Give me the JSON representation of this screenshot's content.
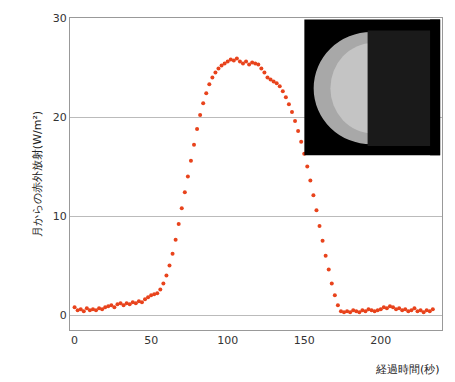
{
  "chart_data": {
    "type": "scatter",
    "x_label": "経過時間(秒)",
    "y_label": "月からの赤外放射(W/m²)",
    "color": "#e8431c",
    "marker": "circle",
    "grid": true,
    "xlim": [
      -3,
      240
    ],
    "ylim": [
      -1.5,
      30
    ],
    "xticks": [
      0,
      50,
      100,
      150,
      200
    ],
    "yticks": [
      0,
      10,
      20,
      30
    ],
    "x": [
      0,
      2,
      4,
      6,
      8,
      10,
      12,
      14,
      16,
      18,
      20,
      22,
      24,
      26,
      28,
      30,
      32,
      34,
      36,
      38,
      40,
      42,
      44,
      46,
      48,
      50,
      52,
      54,
      56,
      58,
      60,
      62,
      64,
      66,
      68,
      70,
      72,
      74,
      76,
      78,
      80,
      82,
      84,
      86,
      88,
      90,
      92,
      94,
      96,
      98,
      100,
      102,
      104,
      106,
      108,
      110,
      112,
      114,
      116,
      118,
      120,
      122,
      124,
      126,
      128,
      130,
      132,
      134,
      136,
      138,
      140,
      142,
      144,
      146,
      148,
      150,
      152,
      154,
      156,
      158,
      160,
      162,
      164,
      166,
      168,
      170,
      172,
      174,
      176,
      178,
      180,
      182,
      184,
      186,
      188,
      190,
      192,
      194,
      196,
      198,
      200,
      202,
      204,
      206,
      208,
      210,
      212,
      214,
      216,
      218,
      220,
      222,
      224,
      226,
      228,
      230,
      232,
      234
    ],
    "values": [
      0.8,
      0.5,
      0.6,
      0.4,
      0.7,
      0.5,
      0.6,
      0.5,
      0.7,
      0.6,
      0.8,
      0.9,
      1.0,
      0.8,
      1.1,
      1.2,
      1.0,
      1.2,
      1.1,
      1.3,
      1.2,
      1.4,
      1.3,
      1.6,
      1.8,
      2.0,
      2.1,
      2.2,
      2.6,
      3.2,
      4.0,
      5.0,
      6.2,
      7.6,
      9.2,
      10.8,
      12.4,
      14.0,
      15.6,
      17.2,
      18.8,
      20.2,
      21.4,
      22.4,
      23.3,
      24.0,
      24.5,
      24.9,
      25.2,
      25.4,
      25.6,
      25.8,
      25.7,
      25.9,
      25.6,
      25.4,
      25.6,
      25.3,
      25.5,
      25.4,
      25.3,
      24.9,
      24.5,
      24.0,
      23.8,
      23.6,
      23.4,
      23.1,
      22.6,
      22.0,
      21.3,
      20.5,
      19.6,
      18.6,
      17.5,
      16.3,
      15.0,
      13.6,
      12.1,
      10.6,
      9.0,
      7.5,
      6.0,
      4.6,
      3.2,
      2.0,
      1.0,
      0.4,
      0.3,
      0.4,
      0.3,
      0.5,
      0.4,
      0.3,
      0.5,
      0.4,
      0.6,
      0.5,
      0.4,
      0.5,
      0.6,
      0.8,
      0.7,
      0.9,
      0.8,
      0.6,
      0.7,
      0.5,
      0.6,
      0.4,
      0.5,
      0.7,
      0.4,
      0.5,
      0.3,
      0.5,
      0.4,
      0.6
    ]
  }
}
